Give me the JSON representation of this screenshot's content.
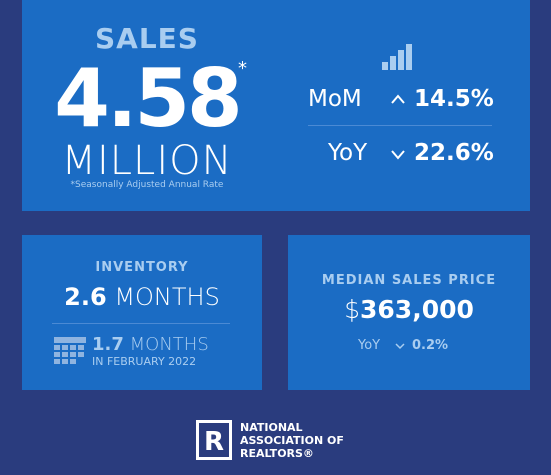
{
  "sales": {
    "title": "SALES",
    "value": "4.58",
    "asterisk": "*",
    "unit": "MILLION",
    "footnote": "*Seasonally Adjusted Annual Rate",
    "mom_label": "MoM",
    "mom_value": "14.5%",
    "yoy_label": "YoY",
    "yoy_value": "22.6%"
  },
  "inventory": {
    "title": "INVENTORY",
    "value": "2.6",
    "unit": "MONTHS",
    "prior_value": "1.7",
    "prior_unit": "MONTHS",
    "prior_period": "IN FEBRUARY 2022"
  },
  "price": {
    "title": "MEDIAN SALES PRICE",
    "currency": "$",
    "value": "363,000",
    "yoy_label": "YoY",
    "yoy_value": "0.2%"
  },
  "logo": {
    "line1": "NATIONAL",
    "line2": "ASSOCIATION OF",
    "line3": "REALTORS®"
  }
}
